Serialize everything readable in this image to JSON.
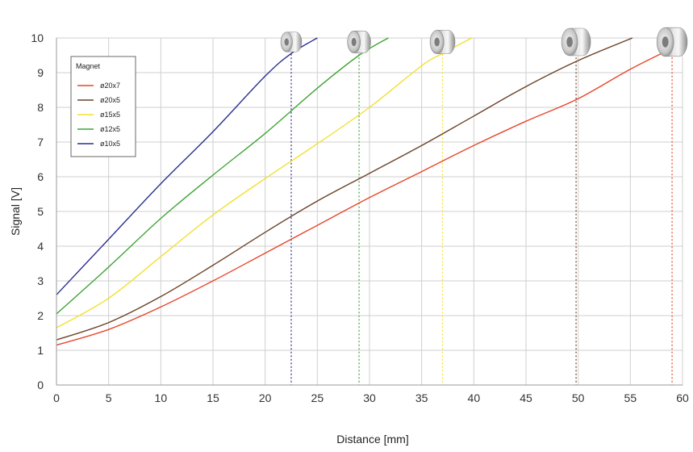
{
  "chart_data": {
    "type": "line",
    "title": "",
    "xlabel": "Distance [mm]",
    "ylabel": "Signal [V]",
    "xlim": [
      0,
      60
    ],
    "ylim": [
      0,
      10
    ],
    "x_ticks": [
      0,
      5,
      10,
      15,
      20,
      25,
      30,
      35,
      40,
      45,
      50,
      55,
      60
    ],
    "y_ticks": [
      0,
      1,
      2,
      3,
      4,
      5,
      6,
      7,
      8,
      9,
      10
    ],
    "grid": true,
    "legend": {
      "title": "Magnet",
      "position": "top-left"
    },
    "series": [
      {
        "name": "ø20x7",
        "color": "#e8462a",
        "x": [
          0,
          5,
          10,
          15,
          20,
          25,
          30,
          35,
          40,
          45,
          50,
          55,
          59
        ],
        "y": [
          1.15,
          1.6,
          2.25,
          3.0,
          3.8,
          4.6,
          5.4,
          6.15,
          6.9,
          7.6,
          8.25,
          9.1,
          9.7
        ]
      },
      {
        "name": "ø20x5",
        "color": "#6b4226",
        "x": [
          0,
          5,
          10,
          15,
          20,
          25,
          30,
          35,
          40,
          45,
          50,
          55.2
        ],
        "y": [
          1.3,
          1.8,
          2.55,
          3.45,
          4.4,
          5.3,
          6.1,
          6.9,
          7.75,
          8.6,
          9.35,
          10
        ]
      },
      {
        "name": "ø15x5",
        "color": "#f2e030",
        "x": [
          0,
          5,
          10,
          15,
          20,
          25,
          30,
          35,
          37,
          39.8
        ],
        "y": [
          1.65,
          2.5,
          3.7,
          4.9,
          5.95,
          6.95,
          8.0,
          9.2,
          9.55,
          10
        ]
      },
      {
        "name": "ø12x5",
        "color": "#3fa535",
        "x": [
          0,
          5,
          10,
          15,
          20,
          25,
          29,
          31.8
        ],
        "y": [
          2.05,
          3.4,
          4.8,
          6.05,
          7.25,
          8.55,
          9.5,
          10
        ]
      },
      {
        "name": "ø10x5",
        "color": "#2b2f8f",
        "x": [
          0,
          5,
          10,
          15,
          20,
          22.5,
          25
        ],
        "y": [
          2.6,
          4.2,
          5.8,
          7.3,
          8.9,
          9.55,
          10
        ]
      }
    ],
    "reference_lines": [
      {
        "x": 22.5,
        "color": "#2b2f8f",
        "style": "dotted"
      },
      {
        "x": 29,
        "color": "#3fa535",
        "style": "dotted"
      },
      {
        "x": 37,
        "color": "#f2e030",
        "style": "dotted"
      },
      {
        "x": 49.8,
        "color": "#6b4226",
        "style": "dotted"
      },
      {
        "x": 59,
        "color": "#e8462a",
        "style": "dotted"
      }
    ],
    "magnet_pictures": [
      {
        "x": 22.5,
        "icon": "ring-magnet-icon",
        "scale": 0.72
      },
      {
        "x": 29,
        "icon": "ring-magnet-icon",
        "scale": 0.8
      },
      {
        "x": 37,
        "icon": "ring-magnet-icon",
        "scale": 0.86
      },
      {
        "x": 49.8,
        "icon": "ring-magnet-icon",
        "scale": 1.0
      },
      {
        "x": 59,
        "icon": "ring-magnet-icon",
        "scale": 1.05
      }
    ]
  }
}
